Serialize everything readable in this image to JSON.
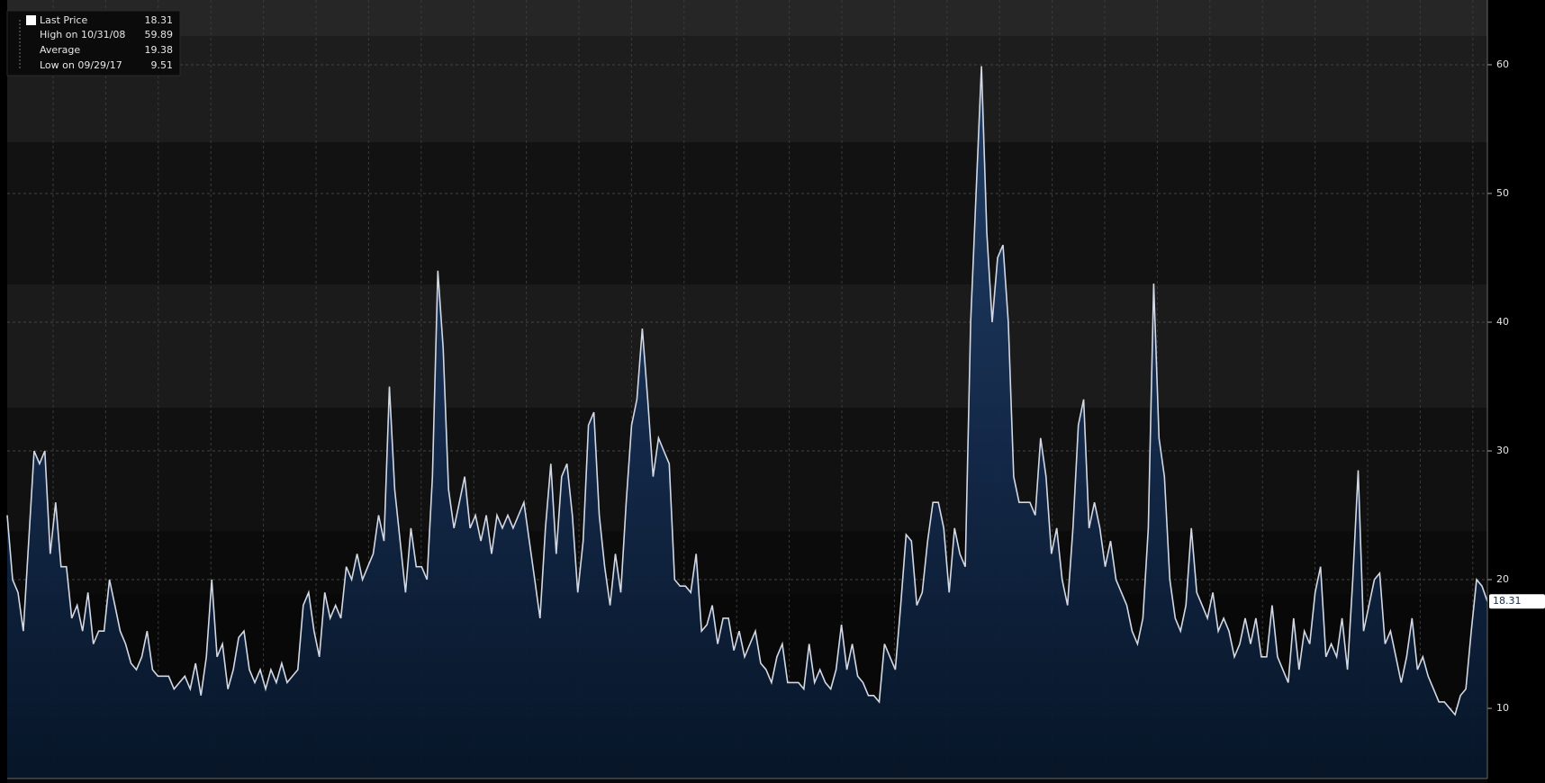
{
  "chart_data": {
    "type": "area",
    "legend": [
      {
        "name": "Last Price",
        "value": 18.31
      },
      {
        "name": "High on 10/31/08",
        "value": 59.89
      },
      {
        "name": "Average",
        "value": 19.38
      },
      {
        "name": "Low on 09/29/17",
        "value": 9.51
      }
    ],
    "series": [
      {
        "name": "Last Price",
        "color": "#d2d8e4",
        "values": [
          25,
          20,
          19,
          16,
          23,
          30,
          29,
          30,
          22,
          26,
          21,
          21,
          17,
          18,
          16,
          19,
          15,
          16,
          16,
          20,
          18,
          16,
          15,
          13.5,
          13,
          14,
          16,
          13,
          12.5,
          12.5,
          12.5,
          11.5,
          12,
          12.5,
          11.5,
          13.5,
          11,
          14,
          20,
          14,
          15,
          11.5,
          13,
          15.5,
          16,
          13,
          12,
          13,
          11.5,
          13,
          12,
          13.5,
          12,
          12.5,
          13,
          18,
          19,
          16,
          14,
          19,
          17,
          18,
          17,
          21,
          20,
          22,
          20,
          21,
          22,
          25,
          23,
          35,
          27,
          23,
          19,
          24,
          21,
          21,
          20,
          28,
          44,
          38,
          27,
          24,
          26,
          28,
          24,
          25,
          23,
          25,
          22,
          25,
          24,
          25,
          24,
          25,
          26,
          23,
          20,
          17,
          24,
          29,
          22,
          28,
          29,
          25,
          19,
          23,
          32,
          33,
          25,
          21,
          18,
          22,
          19,
          26,
          32,
          34,
          39.5,
          34,
          28,
          31,
          30,
          29,
          20,
          19.5,
          19.5,
          19,
          22,
          16,
          16.5,
          18,
          15,
          17,
          17,
          14.5,
          16,
          14,
          15,
          16,
          13.5,
          13,
          12,
          14,
          15,
          12,
          12,
          12,
          11.5,
          15,
          12,
          13,
          12,
          11.5,
          13,
          16.5,
          13,
          15,
          12.5,
          12,
          11,
          11,
          10.5,
          15,
          14,
          13,
          18,
          23.5,
          23,
          18,
          19,
          23,
          26,
          26,
          24,
          19,
          24,
          22,
          21,
          40,
          50,
          59.89,
          47,
          40,
          45,
          46,
          40,
          28,
          26,
          26,
          26,
          25,
          31,
          28,
          22,
          24,
          20,
          18,
          24,
          32,
          34,
          24,
          26,
          24,
          21,
          23,
          20,
          19,
          18,
          16,
          15,
          17,
          24,
          43,
          31,
          28,
          20,
          17,
          16,
          18,
          24,
          19,
          18,
          17,
          19,
          16,
          17,
          16,
          14,
          15,
          17,
          15,
          17,
          14,
          14,
          18,
          14,
          13,
          12,
          17,
          13,
          16,
          15,
          19,
          21,
          14,
          15,
          14,
          17,
          13,
          20,
          28.5,
          16,
          18,
          20,
          20.5,
          15,
          16,
          14,
          12,
          14,
          17,
          13,
          14,
          12.5,
          11.5,
          10.5,
          10.5,
          10,
          9.51,
          11,
          11.5,
          16,
          20,
          19.5,
          18.31
        ]
      }
    ],
    "ylim": [
      4.55,
      65.03
    ],
    "yticks": [
      10,
      20,
      30,
      40,
      50,
      60
    ],
    "grid": true
  }
}
